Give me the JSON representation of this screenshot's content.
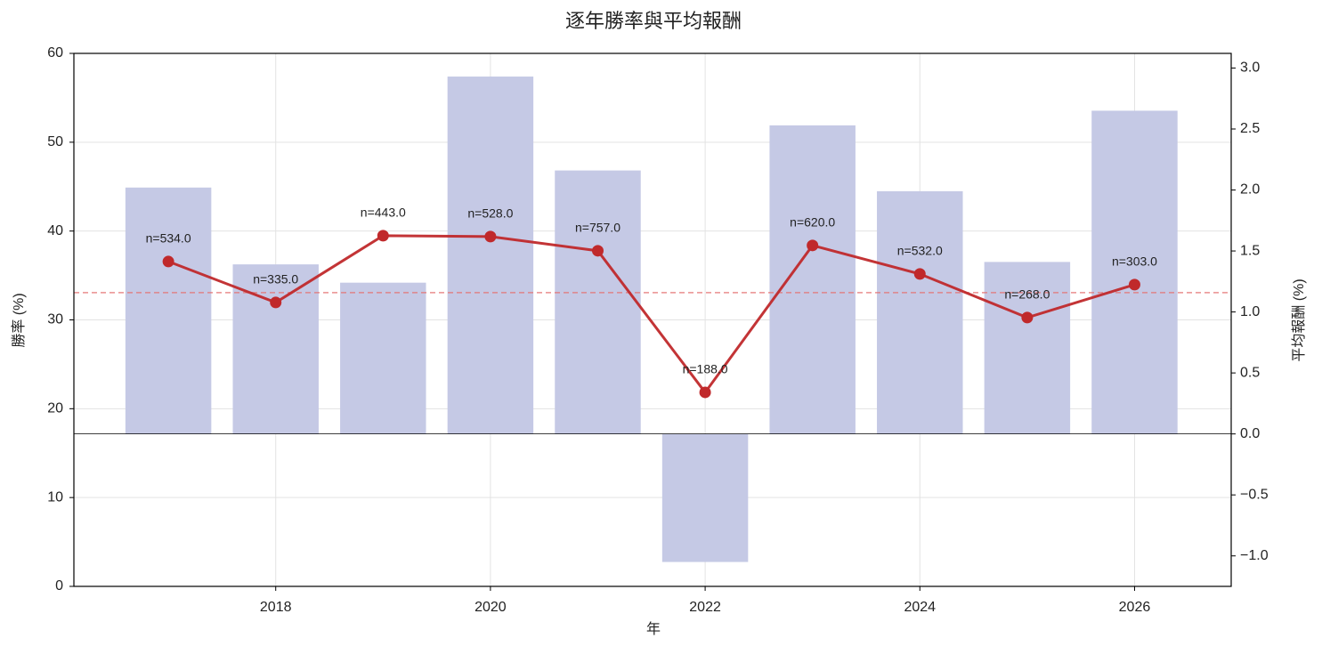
{
  "chart_data": {
    "type": "combo",
    "title": "逐年勝率與平均報酬",
    "xlabel": "年",
    "ylabel": "勝率 (%)",
    "y2label": "平均報酬 (%)",
    "x": [
      2017,
      2018,
      2019,
      2020,
      2021,
      2022,
      2023,
      2024,
      2025,
      2026
    ],
    "xlim": [
      2016.12,
      2026.9
    ],
    "xticks": [
      2018,
      2020,
      2022,
      2024,
      2026
    ],
    "ylim": [
      0,
      60
    ],
    "yticks": [
      0,
      10,
      20,
      30,
      40,
      50,
      60
    ],
    "y2lim": [
      -1.25,
      3.12
    ],
    "y2ticks": [
      {
        "value": -1.0,
        "label": "−1.0"
      },
      {
        "value": -0.5,
        "label": "−0.5"
      },
      {
        "value": 0,
        "label": "0.0"
      },
      {
        "value": 0.5,
        "label": "0.5"
      },
      {
        "value": 1.0,
        "label": "1.0"
      },
      {
        "value": 1.5,
        "label": "1.5"
      },
      {
        "value": 2.0,
        "label": "2.0"
      },
      {
        "value": 2.5,
        "label": "2.5"
      },
      {
        "value": 3.0,
        "label": "3.0"
      }
    ],
    "grid": true,
    "ycolor": "#c62828",
    "y2color": "#3949ab",
    "hline": 33.07,
    "hline_color": "#e57373",
    "series": [
      {
        "type": "bar",
        "axis": "y2",
        "color": "#c5c9e5",
        "values": [
          2.02,
          1.39,
          1.24,
          2.93,
          2.16,
          -1.05,
          2.53,
          1.99,
          1.41,
          2.65
        ]
      },
      {
        "type": "line",
        "color": "#c0292b",
        "values": [
          36.57,
          31.96,
          39.48,
          39.38,
          37.78,
          21.84,
          38.38,
          35.17,
          30.26,
          33.97
        ],
        "labels": [
          "n=534.0",
          "n=335.0",
          "n=443.0",
          "n=528.0",
          "n=757.0",
          "n=188.0",
          "n=620.0",
          "n=532.0",
          "n=268.0",
          "n=303.0"
        ]
      }
    ]
  }
}
